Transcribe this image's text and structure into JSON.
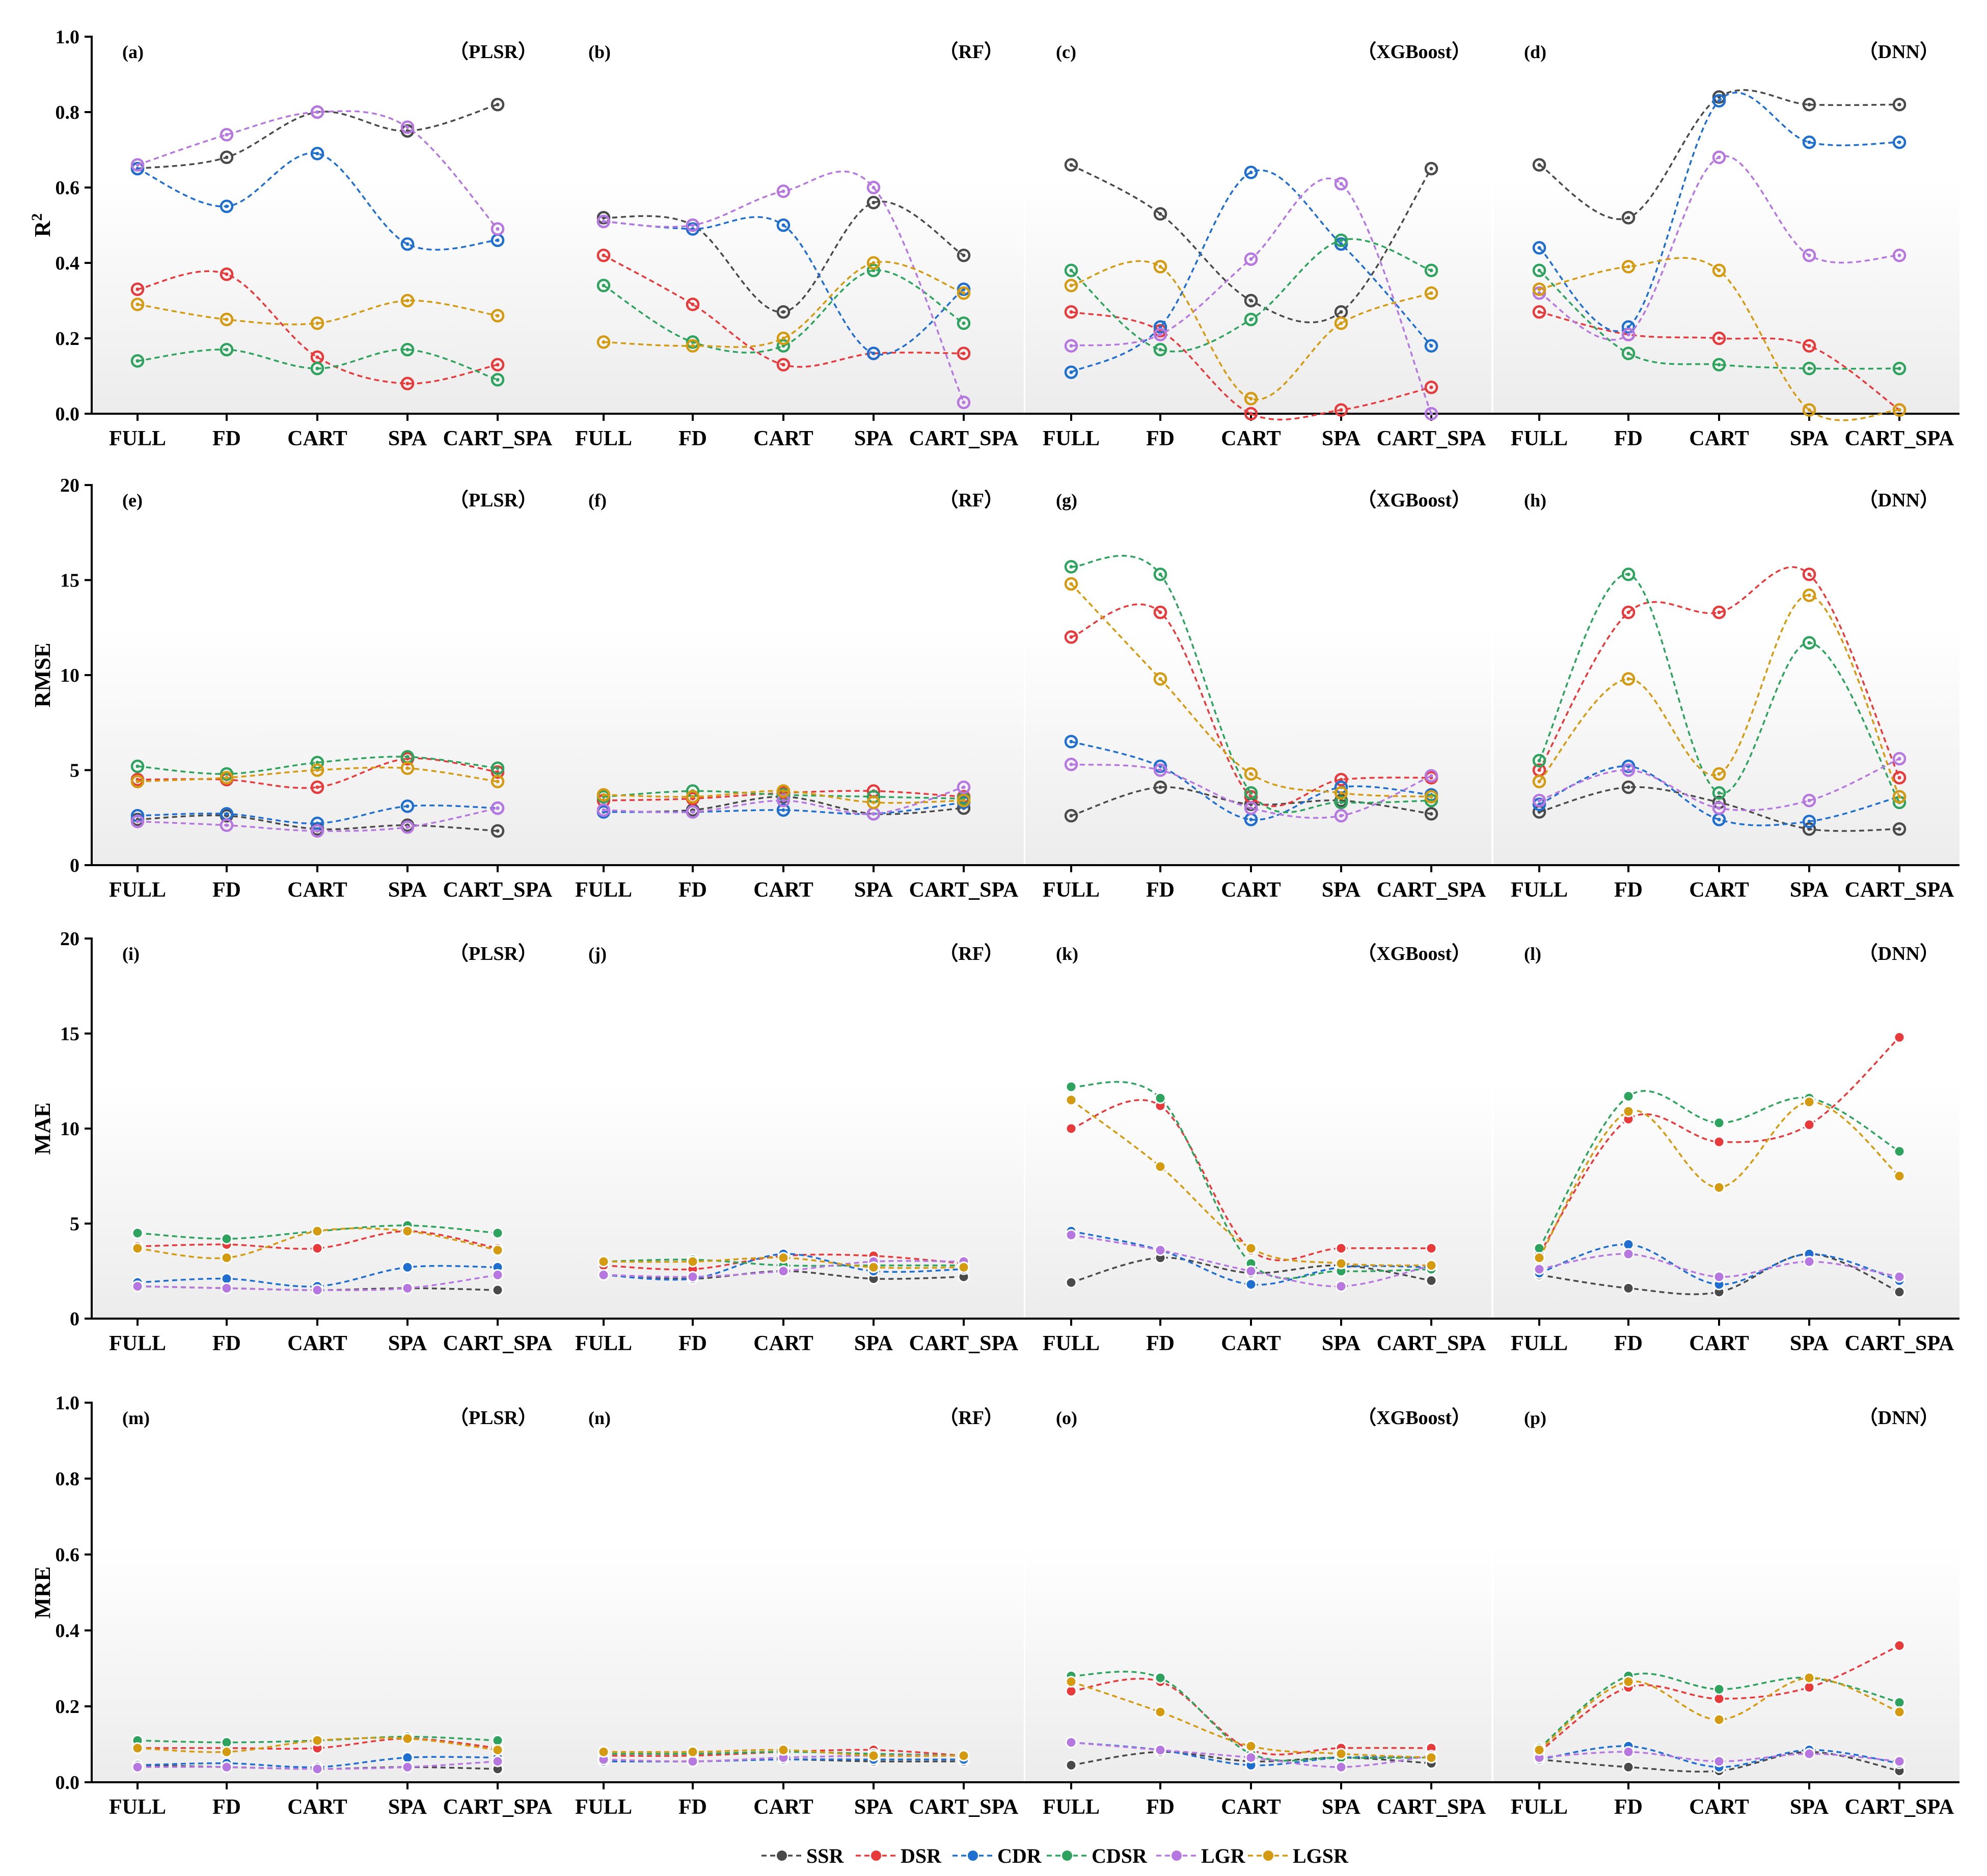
{
  "colors": {
    "SSR": "#4a4a4a",
    "DSR": "#e8393b",
    "CDR": "#1f6fd1",
    "CDSR": "#2ea35e",
    "LGR": "#b678e0",
    "LGSR": "#d49a10"
  },
  "legend": [
    "SSR",
    "DSR",
    "CDR",
    "CDSR",
    "LGR",
    "LGSR"
  ],
  "chart_data": {
    "type": "line",
    "categories": [
      "FULL",
      "FD",
      "CART",
      "SPA",
      "CART_SPA"
    ],
    "series_names": [
      "SSR",
      "DSR",
      "CDR",
      "CDSR",
      "LGR",
      "LGSR"
    ],
    "rows": [
      {
        "ylabel": "R",
        "ylabel_sup": "2",
        "ylim": [
          0,
          1.0
        ],
        "yticks": [
          "0.0",
          "0.2",
          "0.4",
          "0.6",
          "0.8",
          "1.0"
        ],
        "marker": "hollow",
        "panels": [
          {
            "label": "(a)",
            "model": "（PLSR）",
            "series": {
              "SSR": [
                0.65,
                0.68,
                0.8,
                0.75,
                0.82
              ],
              "DSR": [
                0.33,
                0.37,
                0.15,
                0.08,
                0.13
              ],
              "CDR": [
                0.65,
                0.55,
                0.69,
                0.45,
                0.46
              ],
              "CDSR": [
                0.14,
                0.17,
                0.12,
                0.17,
                0.09
              ],
              "LGR": [
                0.66,
                0.74,
                0.8,
                0.76,
                0.49
              ],
              "LGSR": [
                0.29,
                0.25,
                0.24,
                0.3,
                0.26
              ]
            }
          },
          {
            "label": "(b)",
            "model": "（RF）",
            "series": {
              "SSR": [
                0.52,
                0.5,
                0.27,
                0.56,
                0.42
              ],
              "DSR": [
                0.42,
                0.29,
                0.13,
                0.16,
                0.16
              ],
              "CDR": [
                0.51,
                0.49,
                0.5,
                0.16,
                0.33
              ],
              "CDSR": [
                0.34,
                0.19,
                0.18,
                0.38,
                0.24
              ],
              "LGR": [
                0.51,
                0.5,
                0.59,
                0.6,
                0.03
              ],
              "LGSR": [
                0.19,
                0.18,
                0.2,
                0.4,
                0.32
              ]
            }
          },
          {
            "label": "(c)",
            "model": "（XGBoost）",
            "series": {
              "SSR": [
                0.66,
                0.53,
                0.3,
                0.27,
                0.65
              ],
              "DSR": [
                0.27,
                0.22,
                0.0,
                0.01,
                0.07
              ],
              "CDR": [
                0.11,
                0.23,
                0.64,
                0.45,
                0.18
              ],
              "CDSR": [
                0.38,
                0.17,
                0.25,
                0.46,
                0.38
              ],
              "LGR": [
                0.18,
                0.21,
                0.41,
                0.61,
                0.0
              ],
              "LGSR": [
                0.34,
                0.39,
                0.04,
                0.24,
                0.32
              ]
            }
          },
          {
            "label": "(d)",
            "model": "（DNN）",
            "series": {
              "SSR": [
                0.66,
                0.52,
                0.84,
                0.82,
                0.82
              ],
              "DSR": [
                0.27,
                0.21,
                0.2,
                0.18,
                0.01
              ],
              "CDR": [
                0.44,
                0.23,
                0.83,
                0.72,
                0.72
              ],
              "CDSR": [
                0.38,
                0.16,
                0.13,
                0.12,
                0.12
              ],
              "LGR": [
                0.32,
                0.21,
                0.68,
                0.42,
                0.42
              ],
              "LGSR": [
                0.33,
                0.39,
                0.38,
                0.01,
                0.01
              ]
            }
          }
        ]
      },
      {
        "ylabel": "RMSE",
        "ylabel_sup": "",
        "ylim": [
          0,
          20
        ],
        "yticks": [
          "0",
          "5",
          "10",
          "15",
          "20"
        ],
        "marker": "hollow",
        "panels": [
          {
            "label": "(e)",
            "model": "（PLSR）",
            "series": {
              "SSR": [
                2.4,
                2.6,
                1.9,
                2.1,
                1.8
              ],
              "DSR": [
                4.5,
                4.5,
                4.1,
                5.6,
                4.9
              ],
              "CDR": [
                2.6,
                2.7,
                2.2,
                3.1,
                3.0
              ],
              "CDSR": [
                5.2,
                4.8,
                5.4,
                5.7,
                5.1
              ],
              "LGR": [
                2.3,
                2.1,
                1.8,
                2.0,
                3.0
              ],
              "LGSR": [
                4.4,
                4.6,
                5.0,
                5.1,
                4.4
              ]
            }
          },
          {
            "label": "(f)",
            "model": "（RF）",
            "series": {
              "SSR": [
                2.8,
                2.9,
                3.6,
                2.7,
                3.0
              ],
              "DSR": [
                3.4,
                3.5,
                3.8,
                3.9,
                3.6
              ],
              "CDR": [
                2.8,
                2.8,
                2.9,
                2.7,
                3.3
              ],
              "CDSR": [
                3.6,
                3.9,
                3.7,
                3.6,
                3.5
              ],
              "LGR": [
                2.9,
                2.8,
                3.4,
                2.7,
                4.1
              ],
              "LGSR": [
                3.7,
                3.6,
                3.9,
                3.3,
                3.4
              ]
            }
          },
          {
            "label": "(g)",
            "model": "（XGBoost）",
            "series": {
              "SSR": [
                2.6,
                4.1,
                3.2,
                3.4,
                2.7
              ],
              "DSR": [
                12.0,
                13.3,
                3.6,
                4.5,
                4.6
              ],
              "CDR": [
                6.5,
                5.2,
                2.4,
                4.1,
                3.7
              ],
              "CDSR": [
                15.7,
                15.3,
                3.8,
                3.3,
                3.4
              ],
              "LGR": [
                5.3,
                5.0,
                3.0,
                2.6,
                4.7
              ],
              "LGSR": [
                14.8,
                9.8,
                4.8,
                3.8,
                3.6
              ]
            }
          },
          {
            "label": "(h)",
            "model": "（DNN）",
            "series": {
              "SSR": [
                2.8,
                4.1,
                3.3,
                1.9,
                1.9
              ],
              "DSR": [
                5.0,
                13.3,
                13.3,
                15.3,
                4.6
              ],
              "CDR": [
                3.2,
                5.2,
                2.4,
                2.3,
                3.6
              ],
              "CDSR": [
                5.5,
                15.3,
                3.8,
                11.7,
                3.3
              ],
              "LGR": [
                3.4,
                5.0,
                3.0,
                3.4,
                5.6
              ],
              "LGSR": [
                4.4,
                9.8,
                4.8,
                14.2,
                3.6
              ]
            }
          }
        ]
      },
      {
        "ylabel": "MAE",
        "ylabel_sup": "",
        "ylim": [
          0,
          20
        ],
        "yticks": [
          "0",
          "5",
          "10",
          "15",
          "20"
        ],
        "marker": "filled",
        "panels": [
          {
            "label": "(i)",
            "model": "（PLSR）",
            "series": {
              "SSR": [
                1.7,
                1.6,
                1.5,
                1.6,
                1.5
              ],
              "DSR": [
                3.8,
                3.9,
                3.7,
                4.6,
                3.7
              ],
              "CDR": [
                1.9,
                2.1,
                1.7,
                2.7,
                2.7
              ],
              "CDSR": [
                4.5,
                4.2,
                4.6,
                4.9,
                4.5
              ],
              "LGR": [
                1.7,
                1.6,
                1.5,
                1.6,
                2.3
              ],
              "LGSR": [
                3.7,
                3.2,
                4.6,
                4.6,
                3.6
              ]
            }
          },
          {
            "label": "(j)",
            "model": "（RF）",
            "series": {
              "SSR": [
                2.3,
                2.1,
                2.5,
                2.1,
                2.2
              ],
              "DSR": [
                2.8,
                2.6,
                3.3,
                3.3,
                2.9
              ],
              "CDR": [
                2.3,
                2.1,
                3.4,
                2.5,
                2.6
              ],
              "CDSR": [
                3.0,
                3.1,
                2.8,
                2.8,
                2.8
              ],
              "LGR": [
                2.3,
                2.2,
                2.5,
                3.0,
                3.0
              ],
              "LGSR": [
                3.0,
                3.0,
                3.2,
                2.7,
                2.7
              ]
            }
          },
          {
            "label": "(k)",
            "model": "（XGBoost）",
            "series": {
              "SSR": [
                1.9,
                3.2,
                2.4,
                2.8,
                2.0
              ],
              "DSR": [
                10.0,
                11.2,
                3.6,
                3.7,
                3.7
              ],
              "CDR": [
                4.6,
                3.6,
                1.8,
                2.7,
                2.7
              ],
              "CDSR": [
                12.2,
                11.6,
                2.9,
                2.5,
                2.6
              ],
              "LGR": [
                4.4,
                3.6,
                2.5,
                1.7,
                2.8
              ],
              "LGSR": [
                11.5,
                8.0,
                3.7,
                2.9,
                2.8
              ]
            }
          },
          {
            "label": "(l)",
            "model": "（DNN）",
            "series": {
              "SSR": [
                2.3,
                1.6,
                1.4,
                3.4,
                1.4
              ],
              "DSR": [
                3.4,
                10.5,
                9.3,
                10.2,
                14.8
              ],
              "CDR": [
                2.4,
                3.9,
                1.8,
                3.4,
                2.0
              ],
              "CDSR": [
                3.7,
                11.7,
                10.3,
                11.6,
                8.8
              ],
              "LGR": [
                2.6,
                3.4,
                2.2,
                3.0,
                2.2
              ],
              "LGSR": [
                3.2,
                10.9,
                6.9,
                11.4,
                7.5
              ]
            }
          }
        ]
      },
      {
        "ylabel": "MRE",
        "ylabel_sup": "",
        "ylim": [
          0,
          1.0
        ],
        "yticks": [
          "0.0",
          "0.2",
          "0.4",
          "0.6",
          "0.8",
          "1.0"
        ],
        "marker": "filled",
        "panels": [
          {
            "label": "(m)",
            "model": "（PLSR）",
            "series": {
              "SSR": [
                0.045,
                0.04,
                0.035,
                0.04,
                0.035
              ],
              "DSR": [
                0.09,
                0.09,
                0.09,
                0.115,
                0.09
              ],
              "CDR": [
                0.045,
                0.05,
                0.04,
                0.065,
                0.065
              ],
              "CDSR": [
                0.11,
                0.105,
                0.11,
                0.12,
                0.11
              ],
              "LGR": [
                0.04,
                0.04,
                0.035,
                0.04,
                0.055
              ],
              "LGSR": [
                0.09,
                0.08,
                0.11,
                0.115,
                0.085
              ]
            }
          },
          {
            "label": "(n)",
            "model": "（RF）",
            "series": {
              "SSR": [
                0.055,
                0.055,
                0.06,
                0.055,
                0.055
              ],
              "DSR": [
                0.07,
                0.07,
                0.08,
                0.085,
                0.07
              ],
              "CDR": [
                0.055,
                0.055,
                0.06,
                0.06,
                0.06
              ],
              "CDSR": [
                0.075,
                0.075,
                0.08,
                0.075,
                0.07
              ],
              "LGR": [
                0.06,
                0.055,
                0.065,
                0.07,
                0.07
              ],
              "LGSR": [
                0.08,
                0.08,
                0.085,
                0.07,
                0.07
              ]
            }
          },
          {
            "label": "(o)",
            "model": "（XGBoost）",
            "series": {
              "SSR": [
                0.045,
                0.08,
                0.055,
                0.065,
                0.05
              ],
              "DSR": [
                0.24,
                0.265,
                0.085,
                0.09,
                0.09
              ],
              "CDR": [
                0.105,
                0.085,
                0.045,
                0.065,
                0.065
              ],
              "CDSR": [
                0.28,
                0.275,
                0.075,
                0.065,
                0.065
              ],
              "LGR": [
                0.105,
                0.085,
                0.065,
                0.04,
                0.07
              ],
              "LGSR": [
                0.265,
                0.185,
                0.095,
                0.075,
                0.065
              ]
            }
          },
          {
            "label": "(p)",
            "model": "（DNN）",
            "series": {
              "SSR": [
                0.06,
                0.04,
                0.03,
                0.08,
                0.03
              ],
              "DSR": [
                0.08,
                0.25,
                0.22,
                0.25,
                0.36
              ],
              "CDR": [
                0.06,
                0.095,
                0.04,
                0.085,
                0.05
              ],
              "CDSR": [
                0.09,
                0.28,
                0.245,
                0.275,
                0.21
              ],
              "LGR": [
                0.065,
                0.08,
                0.055,
                0.075,
                0.055
              ],
              "LGSR": [
                0.085,
                0.265,
                0.165,
                0.275,
                0.185
              ]
            }
          }
        ]
      }
    ]
  }
}
